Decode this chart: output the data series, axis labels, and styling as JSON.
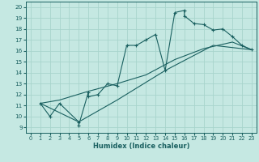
{
  "xlabel": "Humidex (Indice chaleur)",
  "xlim": [
    -0.5,
    23.5
  ],
  "ylim": [
    8.5,
    20.5
  ],
  "xticks": [
    0,
    1,
    2,
    3,
    4,
    5,
    6,
    7,
    8,
    9,
    10,
    11,
    12,
    13,
    14,
    15,
    16,
    17,
    18,
    19,
    20,
    21,
    22,
    23
  ],
  "yticks": [
    9,
    10,
    11,
    12,
    13,
    14,
    15,
    16,
    17,
    18,
    19,
    20
  ],
  "background_color": "#c5e8e2",
  "grid_color": "#a8d4cc",
  "line_color": "#1a6060",
  "line1_x": [
    1,
    2,
    3,
    5,
    5,
    6,
    6,
    7,
    8,
    9,
    10,
    11,
    12,
    13,
    14,
    15,
    16,
    16,
    17,
    18,
    19,
    20,
    21,
    22,
    23
  ],
  "line1_y": [
    11.2,
    10.0,
    11.2,
    9.5,
    9.2,
    12.2,
    11.8,
    12.0,
    13.0,
    12.8,
    16.5,
    16.5,
    17.0,
    17.5,
    14.2,
    19.5,
    19.7,
    19.2,
    18.5,
    18.4,
    17.9,
    18.0,
    17.3,
    16.5,
    16.1
  ],
  "line2_x": [
    1,
    3,
    6,
    9,
    12,
    15,
    18,
    21,
    23
  ],
  "line2_y": [
    11.2,
    11.5,
    12.3,
    13.0,
    13.8,
    15.2,
    16.2,
    16.8,
    16.1
  ],
  "line3_x": [
    1,
    5,
    9,
    14,
    19,
    23
  ],
  "line3_y": [
    11.2,
    9.5,
    11.5,
    14.2,
    16.5,
    16.1
  ],
  "marker_x": [
    1,
    2,
    3,
    5,
    5,
    6,
    6,
    7,
    8,
    9,
    10,
    11,
    12,
    13,
    14,
    15,
    16,
    16,
    17,
    18,
    19,
    20,
    21,
    22,
    23
  ],
  "marker_y": [
    11.2,
    10.0,
    11.2,
    9.5,
    9.2,
    12.2,
    11.8,
    12.0,
    13.0,
    12.8,
    16.5,
    16.5,
    17.0,
    17.5,
    14.2,
    19.5,
    19.7,
    19.2,
    18.5,
    18.4,
    17.9,
    18.0,
    17.3,
    16.5,
    16.1
  ]
}
